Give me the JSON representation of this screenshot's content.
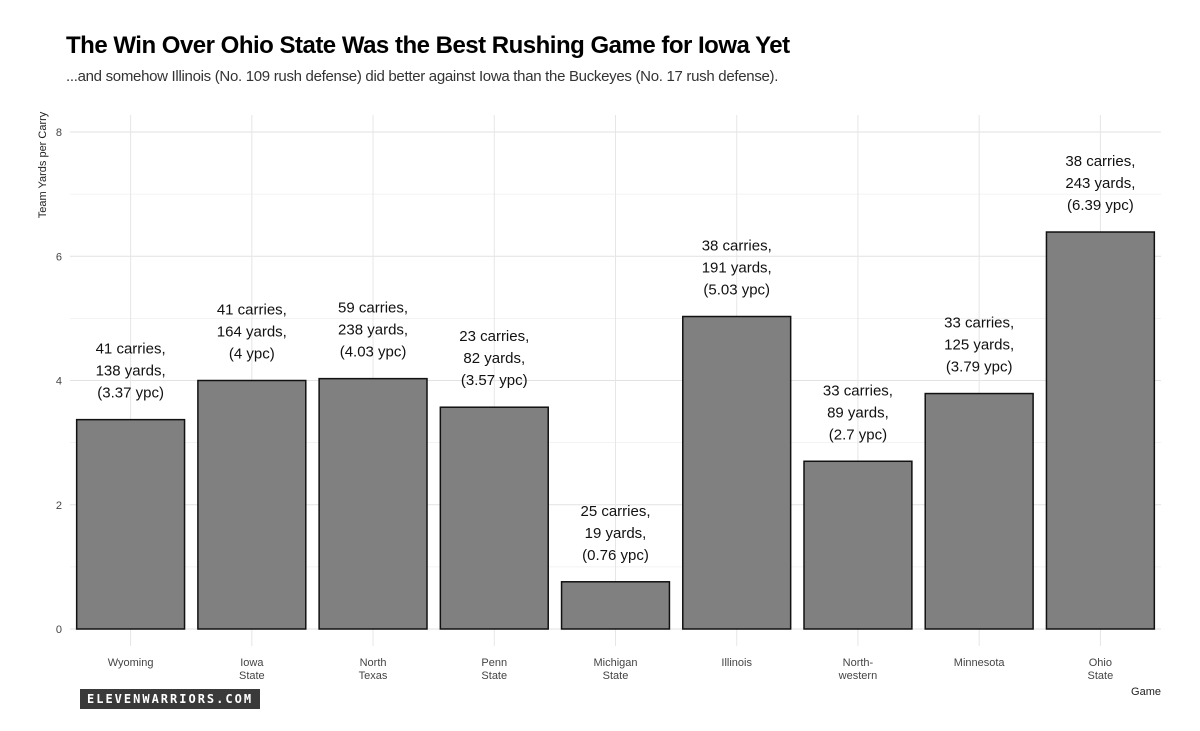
{
  "chart_data": {
    "type": "bar",
    "title": "The Win Over Ohio State Was the Best Rushing Game for Iowa Yet",
    "subtitle": "...and somehow Illinois (No. 109 rush defense) did better against Iowa than the Buckeyes (No. 17 rush defense).",
    "xlabel": "Game",
    "ylabel": "Team Yards per Carry",
    "ylim": [
      0,
      8
    ],
    "yticks": [
      0,
      2,
      4,
      6,
      8
    ],
    "grid": true,
    "bar_color": "#808080",
    "categories": [
      [
        "Wyoming"
      ],
      [
        "Iowa",
        "State"
      ],
      [
        "North",
        "Texas"
      ],
      [
        "Penn",
        "State"
      ],
      [
        "Michigan",
        "State"
      ],
      [
        "Illinois"
      ],
      [
        "North-",
        "western"
      ],
      [
        "Minnesota"
      ],
      [
        "Ohio",
        "State"
      ]
    ],
    "values": [
      3.37,
      4,
      4.03,
      3.57,
      0.76,
      5.03,
      2.7,
      3.79,
      6.39
    ],
    "data_labels": [
      [
        "41 carries,",
        "138 yards,",
        "(3.37 ypc)"
      ],
      [
        "41 carries,",
        "164 yards,",
        "(4 ypc)"
      ],
      [
        "59 carries,",
        "238 yards,",
        "(4.03 ypc)"
      ],
      [
        "23 carries,",
        "82 yards,",
        "(3.57 ypc)"
      ],
      [
        "25 carries,",
        "19 yards,",
        "(0.76 ypc)"
      ],
      [
        "38 carries,",
        "191 yards,",
        "(5.03 ypc)"
      ],
      [
        "33 carries,",
        "89 yards,",
        "(2.7 ypc)"
      ],
      [
        "33 carries,",
        "125 yards,",
        "(3.79 ypc)"
      ],
      [
        "38 carries,",
        "243 yards,",
        "(6.39 ypc)"
      ]
    ]
  },
  "branding": {
    "logo_text": "ELEVENWARRIORS.COM"
  }
}
